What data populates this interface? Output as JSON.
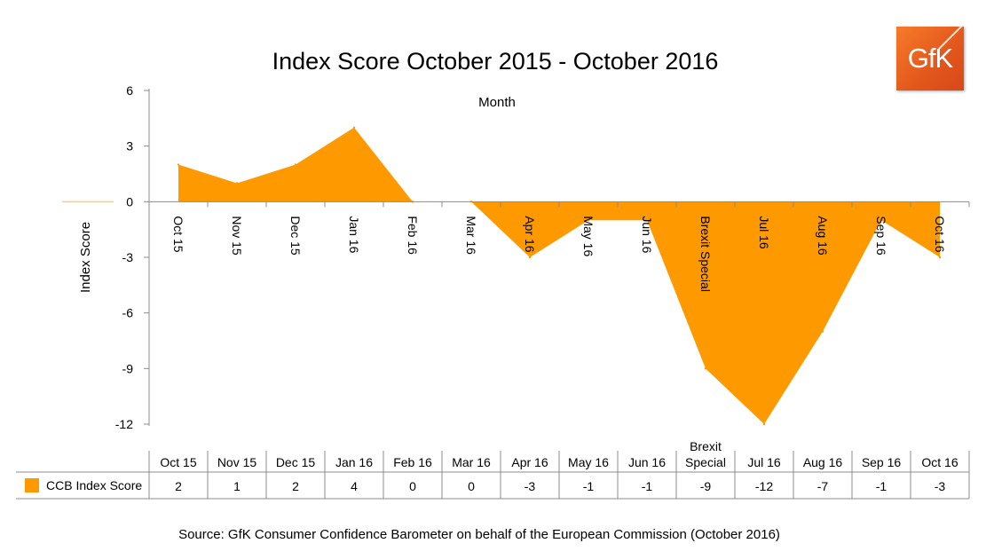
{
  "chart_data": {
    "type": "area",
    "title": "Index Score October 2015 - October 2016",
    "xlabel": "Month",
    "ylabel": "Index Score",
    "ylim": [
      -12,
      6
    ],
    "yticks": [
      6,
      3,
      0,
      -3,
      -6,
      -9,
      -12
    ],
    "categories": [
      "Oct 15",
      "Nov 15",
      "Dec 15",
      "Jan 16",
      "Feb 16",
      "Mar 16",
      "Apr 16",
      "May 16",
      "Jun 16",
      "Brexit Special",
      "Jul 16",
      "Aug 16",
      "Sep 16",
      "Oct 16"
    ],
    "table_categories": [
      "Oct 15",
      "Nov 15",
      "Dec 15",
      "Jan 16",
      "Feb 16",
      "Mar 16",
      "Apr 16",
      "May 16",
      "Jun 16",
      "Brexit\nSpecial",
      "Jul 16",
      "Aug 16",
      "Sep 16",
      "Oct 16"
    ],
    "series": [
      {
        "name": "CCB Index Score",
        "values": [
          2,
          1,
          2,
          4,
          0,
          0,
          -3,
          -1,
          -1,
          -9,
          -12,
          -7,
          -1,
          -3
        ],
        "color": "#ff9900"
      }
    ],
    "grid": false,
    "legend": "data-table"
  },
  "logo": {
    "text": "GfK",
    "color": "#e8601f"
  },
  "source": "Source: GfK Consumer Confidence Barometer on behalf of the European Commission (October 2016)"
}
